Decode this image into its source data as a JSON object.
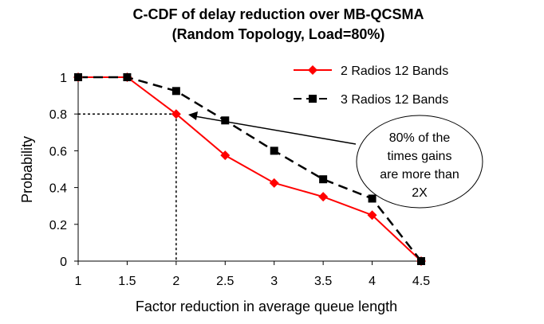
{
  "chart_data": {
    "type": "line",
    "title": "C-CDF of delay reduction over MB-QCSMA",
    "subtitle": "(Random Topology, Load=80%)",
    "xlabel": "Factor reduction in average queue length",
    "ylabel": "Probability",
    "xlim": [
      1,
      4.5
    ],
    "ylim": [
      0,
      1
    ],
    "xticks": [
      "1",
      "1.5",
      "2",
      "2.5",
      "3",
      "3.5",
      "4",
      "4.5"
    ],
    "yticks": [
      "0",
      "0.2",
      "0.4",
      "0.6",
      "0.8",
      "1"
    ],
    "grid": false,
    "legend_position": "top-right",
    "series": [
      {
        "name": "2 Radios 12 Bands",
        "color": "#ff0000",
        "marker": "diamond",
        "line_style": "solid",
        "x": [
          1,
          1.5,
          2,
          2.5,
          3,
          3.5,
          4,
          4.5
        ],
        "values": [
          1.0,
          1.0,
          0.8,
          0.575,
          0.425,
          0.35,
          0.25,
          0.0
        ]
      },
      {
        "name": "3 Radios 12 Bands",
        "color": "#000000",
        "marker": "square",
        "line_style": "dashed",
        "x": [
          1,
          1.5,
          2,
          2.5,
          3,
          3.5,
          4,
          4.5
        ],
        "values": [
          1.0,
          1.0,
          0.925,
          0.765,
          0.6,
          0.445,
          0.34,
          0.0
        ]
      }
    ],
    "annotation": {
      "lines": [
        "80% of the",
        "times gains",
        "are more than",
        "2X"
      ],
      "points_to": {
        "x": 2,
        "y": 0.8
      },
      "reference_lines": {
        "x": 2,
        "y": 0.8
      }
    }
  }
}
